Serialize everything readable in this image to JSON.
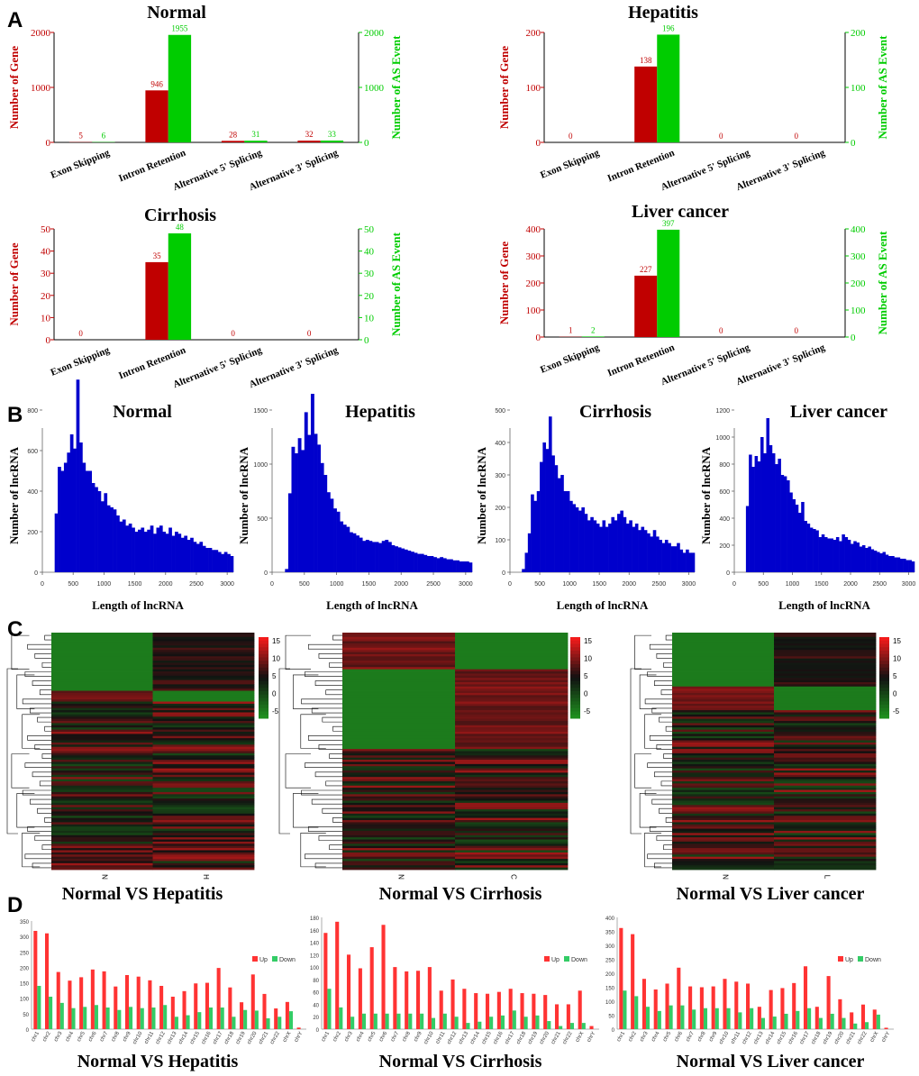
{
  "panel_labels": [
    "A",
    "B",
    "C",
    "D"
  ],
  "colors": {
    "gene": "#c00000",
    "event": "#00cc00",
    "hist": "#0000cc",
    "up": "#ff3333",
    "down": "#33cc66",
    "hm_low": "#1e8f1e",
    "hm_mid": "#111111",
    "hm_high": "#ff1a1a"
  },
  "chart_data": [
    {
      "panel": "A",
      "type": "bar",
      "title": "Normal",
      "categories": [
        "Exon Skipping",
        "Intron Retention",
        "Alternative 5' Splicing",
        "Alternative 3' Splicing"
      ],
      "series": [
        {
          "name": "Number of Gene",
          "values": [
            5,
            946,
            28,
            32
          ]
        },
        {
          "name": "Number of AS Event",
          "values": [
            6,
            1955,
            31,
            33
          ]
        }
      ],
      "ylabel_left": "Number of Gene",
      "ylabel_right": "Number of AS Event",
      "ylim": [
        0,
        2000
      ],
      "ticks": [
        "0",
        "1000",
        "2000"
      ],
      "value_labels": [
        [
          "5",
          "946",
          "28",
          "32"
        ],
        [
          "6",
          "1955",
          "31",
          "33"
        ]
      ]
    },
    {
      "panel": "A",
      "type": "bar",
      "title": "Hepatitis",
      "categories": [
        "Exon Skipping",
        "Intron Retention",
        "Alternative 5' Splicing",
        "Alternative 3' Splicing"
      ],
      "series": [
        {
          "name": "Number of Gene",
          "values": [
            0,
            138,
            0,
            0
          ]
        },
        {
          "name": "Number of AS Event",
          "values": [
            0,
            196,
            0,
            0
          ]
        }
      ],
      "ylabel_left": "Number of Gene",
      "ylabel_right": "Number of AS Event",
      "ylim": [
        0,
        200
      ],
      "ticks": [
        "0",
        "100",
        "200"
      ],
      "value_labels": [
        [
          "0",
          "138",
          "0",
          "0"
        ],
        [
          "",
          "196",
          "",
          ""
        ]
      ]
    },
    {
      "panel": "A",
      "type": "bar",
      "title": "Cirrhosis",
      "categories": [
        "Exon Skipping",
        "Intron Retention",
        "Alternative 5' Splicing",
        "Alternative 3' Splicing"
      ],
      "series": [
        {
          "name": "Number of Gene",
          "values": [
            0,
            35,
            0,
            0
          ]
        },
        {
          "name": "Number of AS Event",
          "values": [
            0,
            48,
            0,
            0
          ]
        }
      ],
      "ylabel_left": "Number of Gene",
      "ylabel_right": "Number of AS Event",
      "ylim": [
        0,
        50
      ],
      "ticks": [
        "0",
        "10",
        "20",
        "30",
        "40",
        "50"
      ],
      "value_labels": [
        [
          "0",
          "35",
          "0",
          "0"
        ],
        [
          "",
          "48",
          "",
          ""
        ]
      ]
    },
    {
      "panel": "A",
      "type": "bar",
      "title": "Liver cancer",
      "categories": [
        "Exon Skipping",
        "Intron Retention",
        "Alternative 5' Splicing",
        "Alternative 3' Splicing"
      ],
      "series": [
        {
          "name": "Number of Gene",
          "values": [
            1,
            227,
            0,
            0
          ]
        },
        {
          "name": "Number of AS Event",
          "values": [
            2,
            397,
            0,
            0
          ]
        }
      ],
      "ylabel_left": "Number of Gene",
      "ylabel_right": "Number of AS Event",
      "ylim": [
        0,
        400
      ],
      "ticks": [
        "0",
        "100",
        "200",
        "300",
        "400"
      ],
      "value_labels": [
        [
          "1",
          "227",
          "0",
          "0"
        ],
        [
          "2",
          "397",
          "",
          ""
        ]
      ]
    },
    {
      "panel": "B",
      "type": "bar",
      "title": "Normal",
      "xlabel": "Length of lncRNA",
      "ylabel": "Number of lncRNA",
      "xlim": [
        0,
        3100
      ],
      "ylim": [
        0,
        800
      ],
      "xticks": [
        "0",
        "500",
        "1000",
        "1500",
        "2000",
        "2500",
        "3000"
      ],
      "yticks": [
        "0",
        "200",
        "400",
        "600",
        "800"
      ],
      "bin_start": 200,
      "bin_width": 50,
      "values": [
        290,
        520,
        500,
        540,
        590,
        680,
        610,
        950,
        640,
        540,
        500,
        500,
        440,
        420,
        400,
        350,
        390,
        330,
        320,
        310,
        280,
        250,
        260,
        230,
        240,
        220,
        200,
        210,
        220,
        200,
        210,
        230,
        190,
        220,
        230,
        200,
        190,
        220,
        180,
        200,
        190,
        170,
        180,
        160,
        170,
        150,
        140,
        150,
        130,
        120,
        120,
        110,
        110,
        100,
        90,
        100,
        90,
        80
      ]
    },
    {
      "panel": "B",
      "type": "bar",
      "title": "Hepatitis",
      "xlabel": "Length of lncRNA",
      "ylabel": "Number of lncRNA",
      "xlim": [
        0,
        3100
      ],
      "ylim": [
        0,
        1500
      ],
      "xticks": [
        "0",
        "500",
        "1000",
        "1500",
        "2000",
        "2500",
        "3000"
      ],
      "yticks": [
        "0",
        "500",
        "1000",
        "1500"
      ],
      "bin_start": 200,
      "bin_width": 50,
      "values": [
        30,
        730,
        1160,
        1100,
        1240,
        1130,
        1480,
        1270,
        1650,
        1280,
        1180,
        1010,
        900,
        740,
        680,
        590,
        560,
        470,
        440,
        420,
        370,
        360,
        340,
        320,
        290,
        300,
        290,
        280,
        280,
        270,
        290,
        300,
        280,
        250,
        240,
        230,
        220,
        210,
        200,
        190,
        180,
        170,
        170,
        160,
        150,
        150,
        140,
        130,
        140,
        130,
        120,
        120,
        110,
        110,
        100,
        100,
        100,
        90
      ]
    },
    {
      "panel": "B",
      "type": "bar",
      "title": "Cirrhosis",
      "xlabel": "Length of lncRNA",
      "ylabel": "Number of lncRNA",
      "xlim": [
        0,
        3100
      ],
      "ylim": [
        0,
        500
      ],
      "xticks": [
        "0",
        "500",
        "1000",
        "1500",
        "2000",
        "2500",
        "3000"
      ],
      "yticks": [
        "0",
        "100",
        "200",
        "300",
        "400",
        "500"
      ],
      "bin_start": 200,
      "bin_width": 50,
      "values": [
        10,
        60,
        120,
        240,
        220,
        250,
        340,
        400,
        380,
        480,
        360,
        330,
        290,
        300,
        250,
        250,
        220,
        210,
        200,
        190,
        200,
        180,
        160,
        170,
        160,
        150,
        140,
        160,
        140,
        150,
        170,
        160,
        180,
        190,
        170,
        150,
        160,
        140,
        150,
        130,
        140,
        130,
        120,
        110,
        130,
        110,
        100,
        90,
        100,
        90,
        80,
        80,
        90,
        70,
        60,
        70,
        60,
        60
      ]
    },
    {
      "panel": "B",
      "type": "bar",
      "title": "Liver cancer",
      "xlabel": "Length of lncRNA",
      "ylabel": "Number of lncRNA",
      "xlim": [
        0,
        3100
      ],
      "ylim": [
        0,
        1200
      ],
      "xticks": [
        "0",
        "500",
        "1000",
        "1500",
        "2000",
        "2500",
        "3000"
      ],
      "yticks": [
        "0",
        "200",
        "400",
        "600",
        "800",
        "1000",
        "1200"
      ],
      "bin_start": 200,
      "bin_width": 50,
      "values": [
        490,
        870,
        780,
        860,
        820,
        1000,
        880,
        1140,
        940,
        880,
        800,
        840,
        720,
        710,
        680,
        590,
        540,
        500,
        440,
        520,
        380,
        360,
        330,
        320,
        310,
        260,
        280,
        260,
        250,
        250,
        240,
        260,
        230,
        280,
        260,
        240,
        210,
        230,
        220,
        190,
        200,
        180,
        190,
        170,
        160,
        150,
        140,
        150,
        130,
        120,
        120,
        110,
        110,
        100,
        100,
        90,
        90,
        80
      ]
    },
    {
      "panel": "C",
      "type": "heatmap",
      "title": "Normal VS Hepatitis",
      "columns": [
        "N",
        "H"
      ],
      "scale_ticks": [
        "15",
        "10",
        "5",
        "0",
        "-5"
      ],
      "scale_range": [
        -7,
        16
      ]
    },
    {
      "panel": "C",
      "type": "heatmap",
      "title": "Normal VS Cirrhosis",
      "columns": [
        "N",
        "C"
      ],
      "scale_ticks": [
        "15",
        "10",
        "5",
        "0",
        "-5"
      ],
      "scale_range": [
        -7,
        16
      ]
    },
    {
      "panel": "C",
      "type": "heatmap",
      "title": "Normal VS Liver cancer",
      "columns": [
        "N",
        "L"
      ],
      "scale_ticks": [
        "15",
        "10",
        "5",
        "0",
        "-5"
      ],
      "scale_range": [
        -7,
        16
      ]
    },
    {
      "panel": "D",
      "type": "bar",
      "title": "Normal VS Hepatitis",
      "legend": [
        "Up",
        "Down"
      ],
      "ylim": [
        0,
        350
      ],
      "yticks": [
        "0",
        "50",
        "100",
        "150",
        "200",
        "250",
        "300",
        "350"
      ],
      "categories": [
        "chr1",
        "chr2",
        "chr3",
        "chr4",
        "chr5",
        "chr6",
        "chr7",
        "chr8",
        "chr9",
        "chr10",
        "chr11",
        "chr12",
        "chr13",
        "chr14",
        "chr15",
        "chr16",
        "chr17",
        "chr18",
        "chr19",
        "chr20",
        "chr21",
        "chr22",
        "chrX",
        "chrY"
      ],
      "series": [
        {
          "name": "Up",
          "values": [
            318,
            310,
            185,
            157,
            168,
            193,
            187,
            138,
            175,
            170,
            158,
            140,
            105,
            123,
            148,
            150,
            198,
            135,
            87,
            177,
            114,
            67,
            88,
            5
          ]
        },
        {
          "name": "Down",
          "values": [
            140,
            105,
            85,
            68,
            72,
            78,
            70,
            62,
            72,
            68,
            70,
            78,
            40,
            45,
            55,
            70,
            70,
            40,
            62,
            60,
            35,
            40,
            58,
            0
          ]
        }
      ]
    },
    {
      "panel": "D",
      "type": "bar",
      "title": "Normal VS Cirrhosis",
      "legend": [
        "Up",
        "Down"
      ],
      "ylim": [
        0,
        180
      ],
      "yticks": [
        "0",
        "20",
        "40",
        "60",
        "80",
        "100",
        "120",
        "140",
        "160",
        "180"
      ],
      "categories": [
        "chr1",
        "chr2",
        "chr3",
        "chr4",
        "chr5",
        "chr6",
        "chr7",
        "chr8",
        "chr9",
        "chr10",
        "chr11",
        "chr12",
        "chr13",
        "chr14",
        "chr15",
        "chr16",
        "chr17",
        "chr18",
        "chr19",
        "chr20",
        "chr21",
        "chr22",
        "chrX",
        "chrY"
      ],
      "series": [
        {
          "name": "Up",
          "values": [
            155,
            173,
            120,
            98,
            132,
            168,
            100,
            93,
            94,
            100,
            62,
            80,
            65,
            58,
            57,
            60,
            65,
            58,
            57,
            55,
            40,
            40,
            62,
            5
          ]
        },
        {
          "name": "Down",
          "values": [
            65,
            35,
            20,
            25,
            25,
            25,
            25,
            25,
            25,
            18,
            25,
            20,
            10,
            12,
            20,
            22,
            30,
            20,
            22,
            13,
            5,
            10,
            10,
            0
          ]
        }
      ]
    },
    {
      "panel": "D",
      "type": "bar",
      "title": "Normal VS Liver cancer",
      "legend": [
        "Up",
        "Down"
      ],
      "ylim": [
        0,
        400
      ],
      "yticks": [
        "0",
        "50",
        "100",
        "150",
        "200",
        "250",
        "300",
        "350",
        "400"
      ],
      "categories": [
        "chr1",
        "chr2",
        "chr3",
        "chr4",
        "chr5",
        "chr6",
        "chr7",
        "chr8",
        "chr9",
        "chr10",
        "chr11",
        "chr12",
        "chr13",
        "chr14",
        "chr15",
        "chr16",
        "chr17",
        "chr18",
        "chr19",
        "chr20",
        "chr21",
        "chr22",
        "chrX",
        "chrY"
      ],
      "series": [
        {
          "name": "Up",
          "values": [
            362,
            340,
            180,
            142,
            163,
            220,
            153,
            150,
            153,
            180,
            170,
            163,
            80,
            140,
            147,
            165,
            225,
            80,
            190,
            107,
            60,
            88,
            70,
            5
          ]
        },
        {
          "name": "Down",
          "values": [
            138,
            118,
            80,
            65,
            85,
            85,
            70,
            75,
            75,
            75,
            60,
            75,
            40,
            45,
            55,
            65,
            75,
            40,
            55,
            40,
            20,
            25,
            52,
            0
          ]
        }
      ]
    }
  ]
}
